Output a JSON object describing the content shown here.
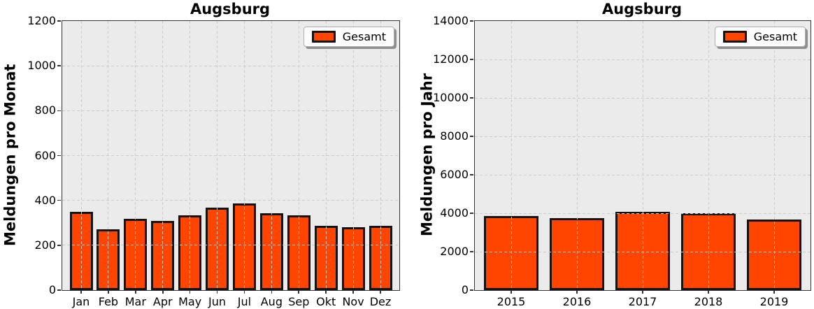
{
  "figure": {
    "background": "#ffffff"
  },
  "colors": {
    "bar_fill": "#FF4500",
    "bar_edge": "#141414",
    "plot_background": "#EBEBEB",
    "gridline": "#CBCBCB",
    "spine": "#333333",
    "legend_background": "#FCFCFC",
    "legend_border": "#AFAFAF",
    "legend_shadow": "#8F8F8F"
  },
  "chart_data": [
    {
      "type": "bar",
      "title": "Augsburg",
      "xlabel": "",
      "ylabel": "Meldungen pro Monat",
      "categories": [
        "Jan",
        "Feb",
        "Mar",
        "Apr",
        "May",
        "Jun",
        "Jul",
        "Aug",
        "Sep",
        "Okt",
        "Nov",
        "Dez"
      ],
      "series": [
        {
          "name": "Gesamt",
          "values": [
            348,
            272,
            317,
            308,
            332,
            367,
            388,
            342,
            335,
            287,
            280,
            288
          ]
        }
      ],
      "ylim": [
        0,
        1200
      ],
      "yticks": [
        0,
        200,
        400,
        600,
        800,
        1000,
        1200
      ],
      "grid": "dashed, drawn above bars",
      "legend": {
        "labels": [
          "Gesamt"
        ],
        "position": "upper right"
      }
    },
    {
      "type": "bar",
      "title": "Augsburg",
      "xlabel": "",
      "ylabel": "Meldungen pro Jahr",
      "categories": [
        "2015",
        "2016",
        "2017",
        "2018",
        "2019"
      ],
      "series": [
        {
          "name": "Gesamt",
          "values": [
            3870,
            3740,
            4080,
            3990,
            3660
          ]
        }
      ],
      "ylim": [
        0,
        14000
      ],
      "yticks": [
        0,
        2000,
        4000,
        6000,
        8000,
        10000,
        12000,
        14000
      ],
      "grid": "dashed, drawn above bars",
      "legend": {
        "labels": [
          "Gesamt"
        ],
        "position": "upper right"
      }
    }
  ]
}
